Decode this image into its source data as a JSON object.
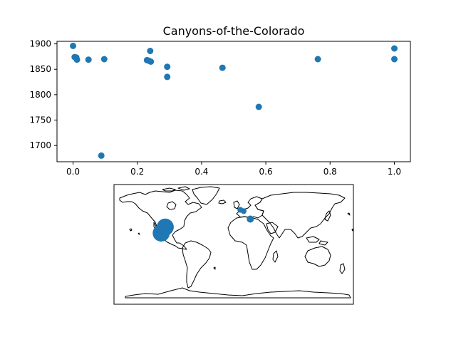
{
  "chart_data": [
    {
      "type": "scatter",
      "title": "Canyons-of-the-Colorado",
      "xlabel": "",
      "ylabel": "",
      "xlim": [
        -0.05,
        1.05
      ],
      "ylim": [
        1668,
        1905
      ],
      "xticks": [
        0.0,
        0.2,
        0.4,
        0.6,
        0.8,
        1.0
      ],
      "xtick_labels": [
        "0.0",
        "0.2",
        "0.4",
        "0.6",
        "0.8",
        "1.0"
      ],
      "yticks": [
        1700,
        1750,
        1800,
        1850,
        1900
      ],
      "ytick_labels": [
        "1700",
        "1750",
        "1800",
        "1850",
        "1900"
      ],
      "grid": false,
      "color": "#1f77b4",
      "points": [
        {
          "x": 0.0,
          "y": 1896
        },
        {
          "x": 0.005,
          "y": 1874
        },
        {
          "x": 0.01,
          "y": 1873
        },
        {
          "x": 0.012,
          "y": 1869
        },
        {
          "x": 0.048,
          "y": 1869
        },
        {
          "x": 0.097,
          "y": 1870
        },
        {
          "x": 0.088,
          "y": 1680
        },
        {
          "x": 0.23,
          "y": 1868
        },
        {
          "x": 0.235,
          "y": 1867
        },
        {
          "x": 0.242,
          "y": 1865
        },
        {
          "x": 0.24,
          "y": 1886
        },
        {
          "x": 0.293,
          "y": 1855
        },
        {
          "x": 0.293,
          "y": 1835
        },
        {
          "x": 0.465,
          "y": 1853
        },
        {
          "x": 0.578,
          "y": 1776
        },
        {
          "x": 0.762,
          "y": 1870
        },
        {
          "x": 1.0,
          "y": 1891
        },
        {
          "x": 1.0,
          "y": 1870
        }
      ]
    },
    {
      "type": "map",
      "projection": "plate-carree",
      "extent": {
        "lon": [
          -180,
          180
        ],
        "lat": [
          -90,
          90
        ]
      },
      "color": "#1f77b4",
      "markers": [
        {
          "lon": -103,
          "lat": 26,
          "size": "large"
        },
        {
          "lon": -109,
          "lat": 17,
          "size": "large"
        },
        {
          "lon": 10,
          "lat": 52,
          "size": "small"
        },
        {
          "lon": 15,
          "lat": 50,
          "size": "small"
        },
        {
          "lon": 25,
          "lat": 38,
          "size": "medium"
        }
      ]
    }
  ]
}
